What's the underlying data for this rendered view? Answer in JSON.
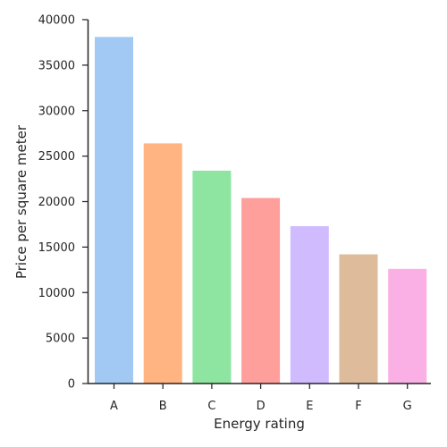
{
  "chart_data": {
    "type": "bar",
    "title": "",
    "xlabel": "Energy rating",
    "ylabel": "Price per square meter",
    "categories": [
      "A",
      "B",
      "C",
      "D",
      "E",
      "F",
      "G"
    ],
    "values": [
      38100,
      26400,
      23400,
      20400,
      17300,
      14200,
      12600
    ],
    "colors": [
      "#a1c9f4",
      "#ffb482",
      "#8de5a1",
      "#ff9f9b",
      "#d0bbff",
      "#debb9b",
      "#fab0e4"
    ],
    "ylim": [
      0,
      40000
    ],
    "yticks": [
      0,
      5000,
      10000,
      15000,
      20000,
      25000,
      30000,
      35000,
      40000
    ],
    "grid": false,
    "legend": "none"
  }
}
